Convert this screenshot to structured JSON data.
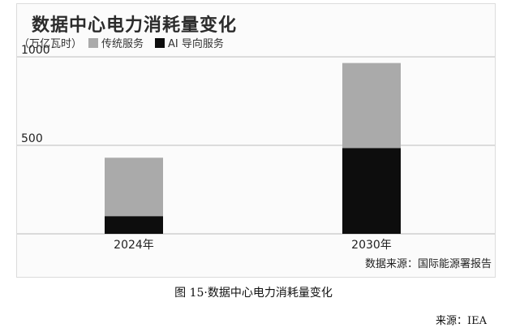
{
  "figure": {
    "caption": "图 15·数据中心电力消耗量变化",
    "source": "来源：IEA"
  },
  "chart_data": {
    "type": "bar",
    "stacked": true,
    "title": "数据中心电力消耗量变化",
    "ylabel": "（万亿瓦时）",
    "categories": [
      "2024年",
      "2030年"
    ],
    "y_ticks": [
      500,
      1000
    ],
    "ylim": [
      0,
      1000
    ],
    "series": [
      {
        "name": "AI 导向服务",
        "values": [
          100,
          485
        ],
        "color": "#0d0d0d"
      },
      {
        "name": "传统服务",
        "values": [
          330,
          480
        ],
        "color": "#aaaaaa"
      }
    ],
    "grid": true,
    "legend_position": "top-left",
    "source_note": "数据来源：国际能源署报告"
  }
}
